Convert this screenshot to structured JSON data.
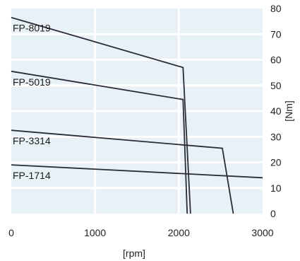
{
  "chart_data": {
    "type": "line",
    "xlabel": "[rpm]",
    "ylabel": "[Nm]",
    "xlim": [
      0,
      3000
    ],
    "ylim": [
      0,
      80
    ],
    "x_ticks": [
      0,
      1000,
      2000,
      3000
    ],
    "y_ticks": [
      0,
      10,
      20,
      30,
      40,
      50,
      60,
      70,
      80
    ],
    "grid": true,
    "colors": {
      "plot_bg": "#e8f2f6",
      "grid": "#ffffff",
      "line": "#2b2b3a",
      "text": "#222222"
    },
    "series": [
      {
        "name": "FP-8019",
        "points": [
          [
            0,
            76.5
          ],
          [
            2050,
            57
          ],
          [
            2140,
            0
          ]
        ]
      },
      {
        "name": "FP-5019",
        "points": [
          [
            0,
            55.5
          ],
          [
            2050,
            44.5
          ],
          [
            2100,
            0
          ]
        ]
      },
      {
        "name": "FP-3314",
        "points": [
          [
            0,
            32.5
          ],
          [
            2520,
            25.5
          ],
          [
            2650,
            0
          ]
        ]
      },
      {
        "name": "FP-1714",
        "points": [
          [
            0,
            19
          ],
          [
            3000,
            14
          ]
        ]
      }
    ]
  }
}
